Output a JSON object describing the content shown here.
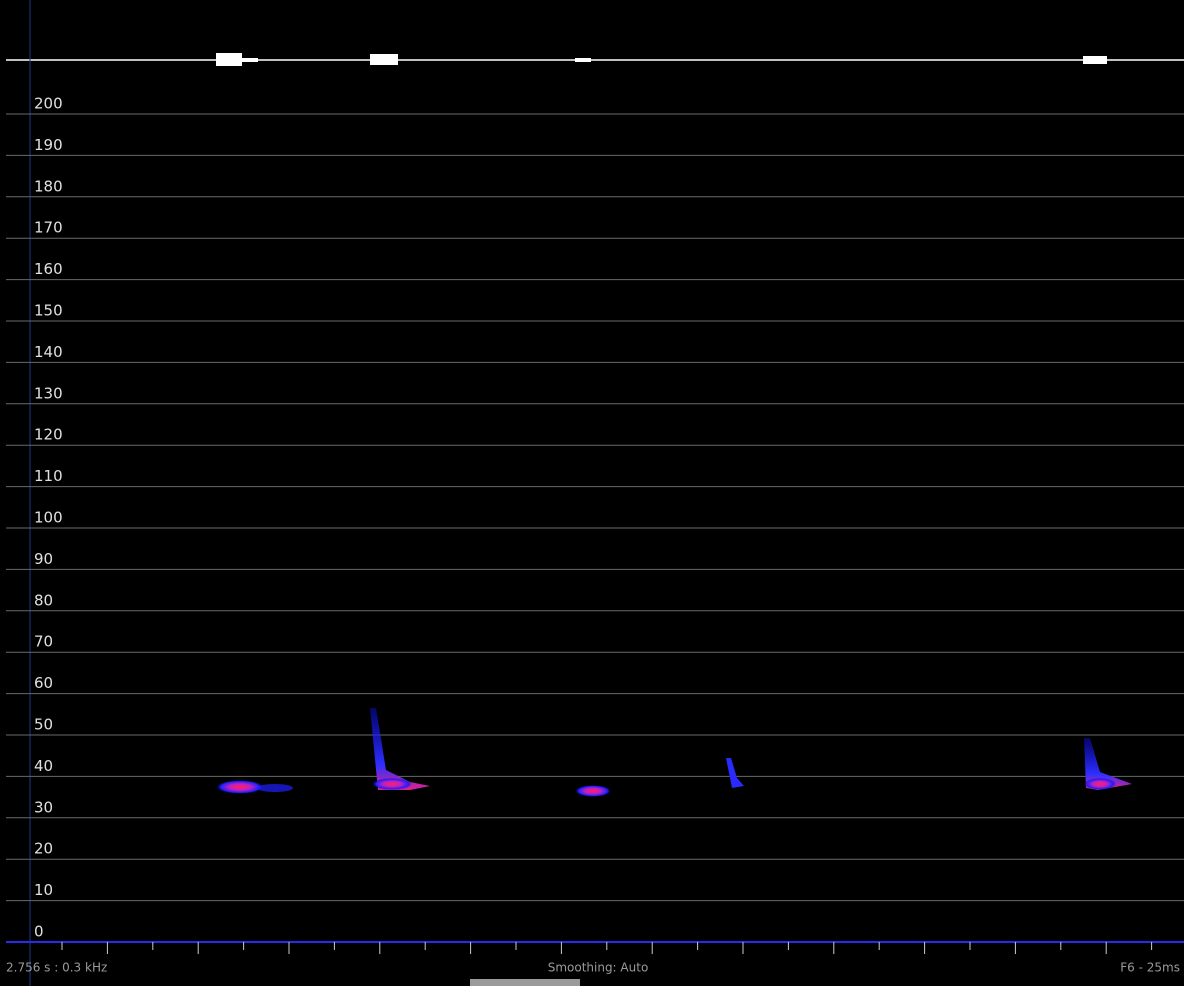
{
  "frequency_axis": {
    "ticks": [
      0,
      10,
      20,
      30,
      40,
      50,
      60,
      70,
      80,
      90,
      100,
      110,
      120,
      130,
      140,
      150,
      160,
      170,
      180,
      190,
      200
    ],
    "range": [
      0,
      200
    ]
  },
  "status_bar": {
    "position": "2.756 s : 0.3 kHz",
    "smoothing": "Smoothing: Auto",
    "window": "F6 - 25ms"
  }
}
